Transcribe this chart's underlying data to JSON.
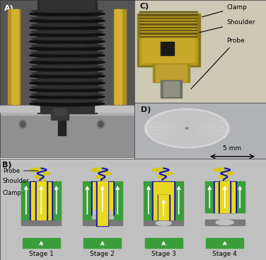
{
  "fig_width": 3.76,
  "fig_height": 3.67,
  "dpi": 100,
  "panel_labels": [
    "A)",
    "B)",
    "C)",
    "D)"
  ],
  "stage_labels": [
    "Stage 1",
    "Stage 2",
    "Stage 3",
    "Stage 4"
  ],
  "clamp_labels_B": [
    "Probe",
    "Shoulder",
    "Clamp"
  ],
  "tool_labels_C": [
    "Clamp",
    "Shoulder",
    "Probe"
  ],
  "scale_bar_text": "5 mm",
  "color_green": "#3a9e3a",
  "color_yellow": "#e8d820",
  "color_blue_dark": "#1414aa",
  "color_gray_plate": "#787878",
  "color_light_gray": "#c0c0c0",
  "color_white": "#ffffff",
  "color_black": "#000000",
  "bg_B": "#c0c0c0",
  "bg_A_dark": "#505050",
  "bg_A_mid": "#686868",
  "bg_A_light": "#909090",
  "color_spring": "#1a1a1a",
  "color_gold": "#c8a030",
  "color_metal_dark": "#808060",
  "color_metal_light": "#c8b040"
}
